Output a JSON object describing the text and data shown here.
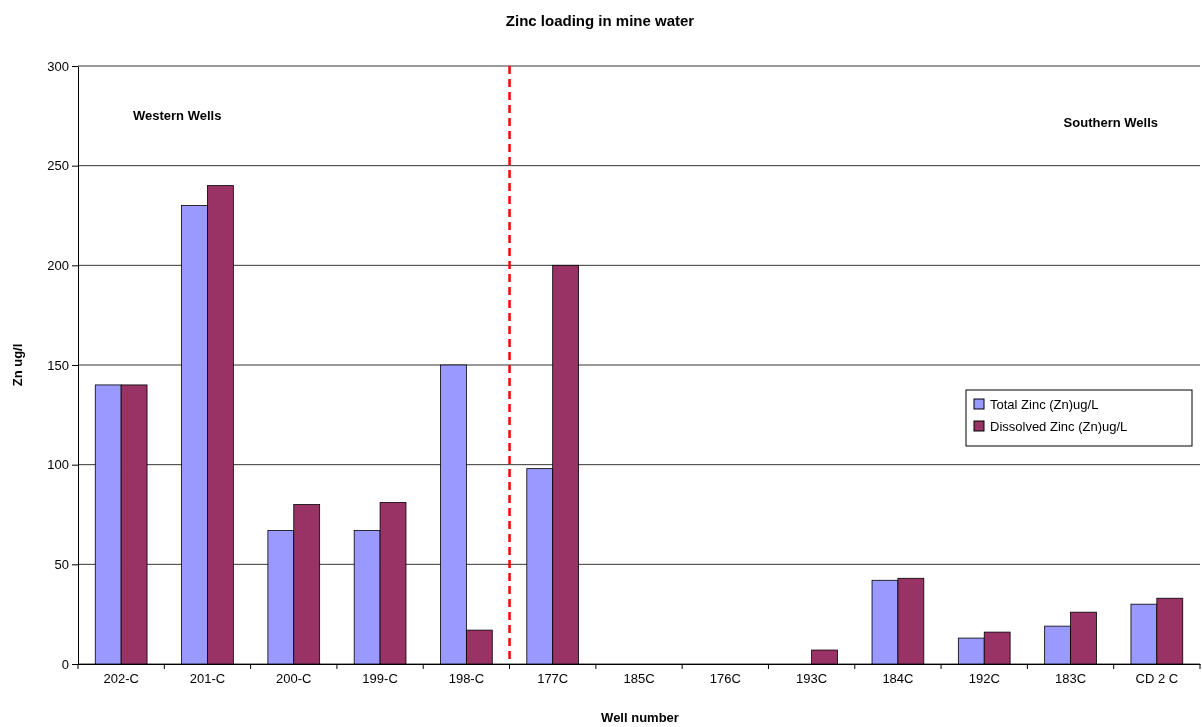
{
  "chart_data": {
    "type": "bar",
    "title": "Zinc loading in mine water",
    "xlabel": "Well number",
    "ylabel": "Zn ug/l",
    "categories": [
      "202-C",
      "201-C",
      "200-C",
      "199-C",
      "198-C",
      "177C",
      "185C",
      "176C",
      "193C",
      "184C",
      "192C",
      "183C",
      "CD 2 C"
    ],
    "series": [
      {
        "name": "Total Zinc (Zn)ug/L",
        "color": "#9999ff",
        "values": [
          140,
          230,
          67,
          67,
          150,
          98,
          null,
          null,
          null,
          42,
          13,
          19,
          30
        ]
      },
      {
        "name": "Dissolved Zinc (Zn)ug/L",
        "color": "#993366",
        "values": [
          140,
          240,
          80,
          81,
          17,
          200,
          null,
          null,
          7,
          43,
          16,
          26,
          33
        ]
      }
    ],
    "ylim": [
      0,
      300
    ],
    "yticks": [
      0,
      50,
      100,
      150,
      200,
      250,
      300
    ],
    "grid": "y",
    "legend": "right",
    "annotations": [
      "Western Wells",
      "Southern Wells"
    ]
  }
}
